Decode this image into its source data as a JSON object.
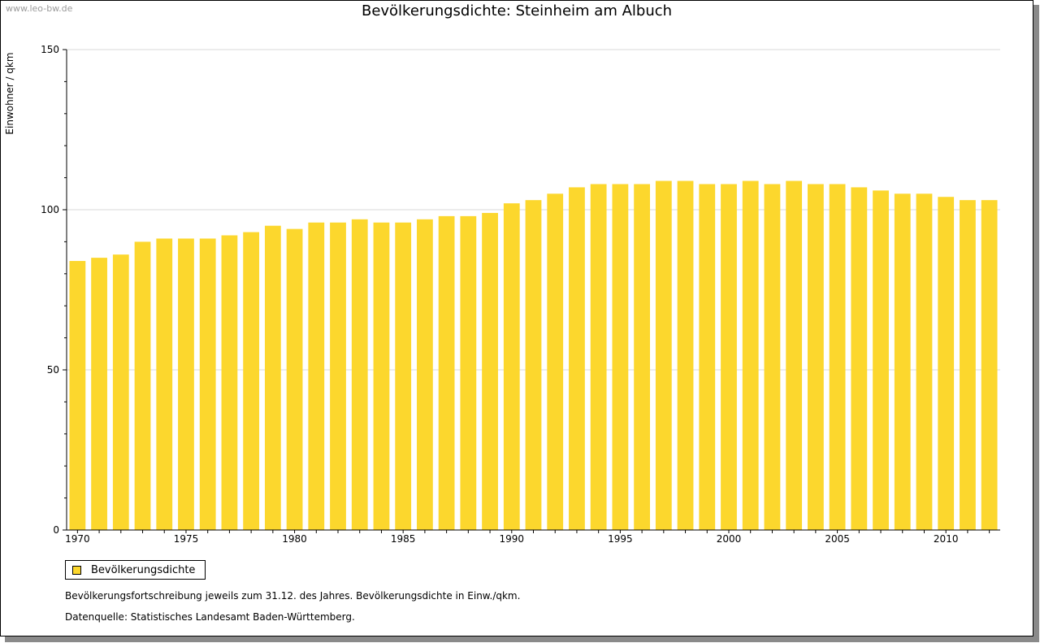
{
  "watermark": "www.leo-bw.de",
  "colors": {
    "bar": "#fcd72d",
    "grid": "#d9d9d9",
    "axis": "#000000"
  },
  "legend": {
    "label": "Bevölkerungsdichte"
  },
  "notes": {
    "line1": "Bevölkerungsfortschreibung jeweils zum 31.12. des Jahres. Bevölkerungsdichte in Einw./qkm.",
    "line2": "Datenquelle: Statistisches Landesamt Baden-Württemberg."
  },
  "chart_data": {
    "type": "bar",
    "title": "Bevölkerungsdichte: Steinheim am Albuch",
    "xlabel": "",
    "ylabel": "Einwohner / qkm",
    "ylim": [
      0,
      150
    ],
    "yticks": [
      0,
      50,
      100,
      150
    ],
    "xtick_labels": [
      "1970",
      "1975",
      "1980",
      "1985",
      "1990",
      "1995",
      "2000",
      "2005",
      "2010"
    ],
    "grid": true,
    "legend_position": "bottom-left",
    "categories": [
      1970,
      1971,
      1972,
      1973,
      1974,
      1975,
      1976,
      1977,
      1978,
      1979,
      1980,
      1981,
      1982,
      1983,
      1984,
      1985,
      1986,
      1987,
      1988,
      1989,
      1990,
      1991,
      1992,
      1993,
      1994,
      1995,
      1996,
      1997,
      1998,
      1999,
      2000,
      2001,
      2002,
      2003,
      2004,
      2005,
      2006,
      2007,
      2008,
      2009,
      2010,
      2011,
      2012
    ],
    "series": [
      {
        "name": "Bevölkerungsdichte",
        "values": [
          84,
          85,
          86,
          90,
          91,
          91,
          91,
          92,
          93,
          95,
          94,
          96,
          96,
          97,
          96,
          96,
          97,
          98,
          98,
          99,
          102,
          103,
          105,
          107,
          108,
          108,
          108,
          109,
          109,
          108,
          108,
          109,
          108,
          109,
          108,
          108,
          107,
          106,
          105,
          105,
          104,
          103,
          103
        ]
      }
    ]
  }
}
